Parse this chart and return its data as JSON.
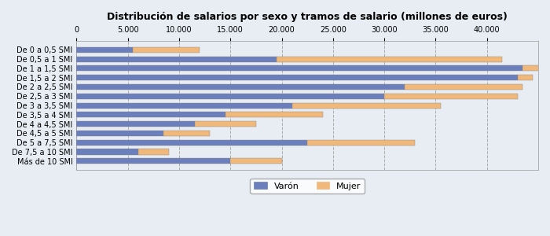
{
  "title": "Distribución de salarios por sexo y tramos de salario (millones de euros)",
  "categories": [
    "De 0 a 0,5 SMI",
    "De 0,5 a 1 SMI",
    "De 1 a 1,5 SMI",
    "De 1,5 a 2 SMI",
    "De 2 a 2,5 SMI",
    "De 2,5 a 3 SMI",
    "De 3 a 3,5 SMI",
    "De 3,5 a 4 SMI",
    "De 4 a 4,5 SMI",
    "De 4,5 a 5 SMI",
    "De 5 a 7,5 SMI",
    "De 7,5 a 10 SMI",
    "Más de 10 SMI"
  ],
  "varon": [
    5500,
    19500,
    43500,
    43000,
    32000,
    30000,
    21000,
    14500,
    11500,
    8500,
    22500,
    6000,
    15000
  ],
  "mujer": [
    6500,
    22000,
    2000,
    1500,
    11500,
    13000,
    14500,
    9500,
    6000,
    4500,
    10500,
    3000,
    5000
  ],
  "color_varon": "#6B7FBD",
  "color_mujer": "#F0B87A",
  "background_color": "#E8EDF4",
  "plot_bg_color": "#E8EDF4",
  "xlim": [
    0,
    45000
  ],
  "xticks": [
    0,
    5000,
    10000,
    15000,
    20000,
    25000,
    30000,
    35000,
    40000
  ],
  "legend_labels": [
    "Varón",
    "Mujer"
  ],
  "title_fontsize": 9,
  "tick_fontsize": 7,
  "bar_height": 0.6
}
